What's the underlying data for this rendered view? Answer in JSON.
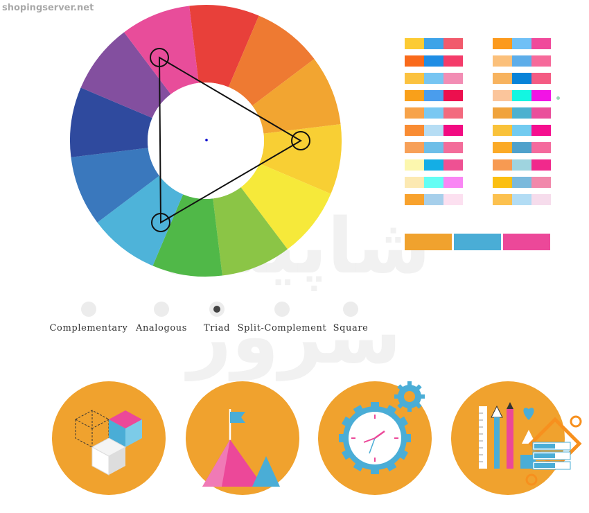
{
  "site": {
    "label": "shopingserver.net",
    "watermark": "شاپینگ سرور"
  },
  "wheel": {
    "mode": "Triad",
    "segment_colors": [
      "#e8403a",
      "#ee7a32",
      "#f2a531",
      "#f8cf34",
      "#f6e93a",
      "#8bc546",
      "#50b848",
      "#4eb3d9",
      "#3a78bd",
      "#2f4a9e",
      "#834f9f",
      "#e84d9a"
    ],
    "center_color": "#0000cc"
  },
  "palettes": {
    "left": [
      [
        "#fccb33",
        "#3da3e8",
        "#f15a6c"
      ],
      [
        "#f96a1b",
        "#1f8de4",
        "#f43c6a"
      ],
      [
        "#fbc23f",
        "#76c5f2",
        "#f28db4"
      ],
      [
        "#f9a01a",
        "#4a9ded",
        "#ec0f4e"
      ],
      [
        "#f7a34a",
        "#79c8f2",
        "#f36a7e"
      ],
      [
        "#f98c33",
        "#b6ddf4",
        "#f20b82"
      ],
      [
        "#f7a058",
        "#6dbee8",
        "#f36c9a"
      ],
      [
        "#fcf7ae",
        "#14aee5",
        "#ee5193"
      ],
      [
        "#fce9b2",
        "#64fef4",
        "#f986f4"
      ],
      [
        "#f8a22d",
        "#a6cfeb",
        "#fce0f0"
      ]
    ],
    "right": [
      [
        "#fc9a1d",
        "#70c0f6",
        "#f0499b"
      ],
      [
        "#fbc07b",
        "#5dade9",
        "#f66a9b"
      ],
      [
        "#f7b35f",
        "#0983d8",
        "#f45b83"
      ],
      [
        "#fbc59b",
        "#13f6e1",
        "#f214e5"
      ],
      [
        "#f0a33c",
        "#4db1cf",
        "#ea4f9b"
      ],
      [
        "#f9c23a",
        "#72cbf0",
        "#f50f8f"
      ],
      [
        "#fbaa26",
        "#4fa1cb",
        "#f46a9d"
      ],
      [
        "#f79a52",
        "#9fd4df",
        "#f1298c"
      ],
      [
        "#fbbf11",
        "#7ab9dc",
        "#f188ab"
      ],
      [
        "#fcc14f",
        "#b2dcf4",
        "#f6dcec"
      ]
    ],
    "selected": [
      "#f0a22e",
      "#4aadd6",
      "#ec4899"
    ]
  },
  "modes": [
    {
      "label": "Complementary",
      "active": false
    },
    {
      "label": "Analogous",
      "active": false
    },
    {
      "label": "Triad",
      "active": true
    },
    {
      "label": "Split-Complement",
      "active": false
    },
    {
      "label": "Square",
      "active": false
    }
  ],
  "icons": [
    "cubes-icon",
    "mountain-flag-icon",
    "gear-clock-icon",
    "design-tools-server-icon"
  ]
}
